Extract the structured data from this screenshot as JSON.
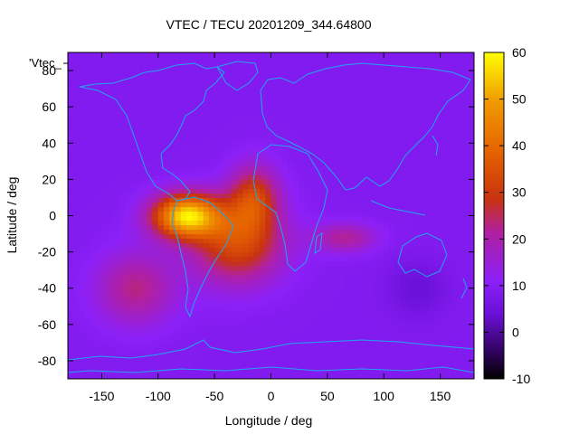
{
  "chart_data": {
    "type": "heatmap",
    "title": "VTEC / TECU 20201209_344.64800",
    "xlabel": "Longitude / deg",
    "ylabel": "Latitude / deg",
    "xlim": [
      -180,
      180
    ],
    "ylim": [
      -90,
      90
    ],
    "x_ticks": [
      -150,
      -100,
      -50,
      0,
      50,
      100,
      150
    ],
    "y_ticks": [
      -80,
      -60,
      -40,
      -20,
      0,
      20,
      40,
      60,
      80
    ],
    "colorbar": {
      "min": -10,
      "max": 60,
      "ticks": [
        -10,
        0,
        10,
        20,
        30,
        40,
        50,
        60
      ],
      "palette": "gnuplot-hot (black-purple-red-orange-yellow)"
    },
    "legend_label": "'Vtec_",
    "background_level": 9,
    "features": [
      {
        "name": "south-america-peak",
        "lon": -75,
        "lat": 0,
        "value": 55,
        "spread_lon": 30,
        "spread_lat": 12
      },
      {
        "name": "south-atlantic-plume",
        "lon": -30,
        "lat": -15,
        "value": 33,
        "spread_lon": 40,
        "spread_lat": 22
      },
      {
        "name": "central-atlantic",
        "lon": -15,
        "lat": 10,
        "value": 30,
        "spread_lon": 22,
        "spread_lat": 18
      },
      {
        "name": "south-pacific-lobe",
        "lon": -120,
        "lat": -40,
        "value": 23,
        "spread_lon": 35,
        "spread_lat": 20
      },
      {
        "name": "indian-ocean-tongue",
        "lon": 65,
        "lat": -12,
        "value": 22,
        "spread_lon": 28,
        "spread_lat": 8
      },
      {
        "name": "pacific-minimum",
        "lon": 130,
        "lat": -40,
        "value": 4,
        "spread_lon": 25,
        "spread_lat": 15
      }
    ],
    "colors": {
      "background_purple": "#8c20f8",
      "coastline": "#1fa6f0",
      "frame": "#000000"
    }
  }
}
